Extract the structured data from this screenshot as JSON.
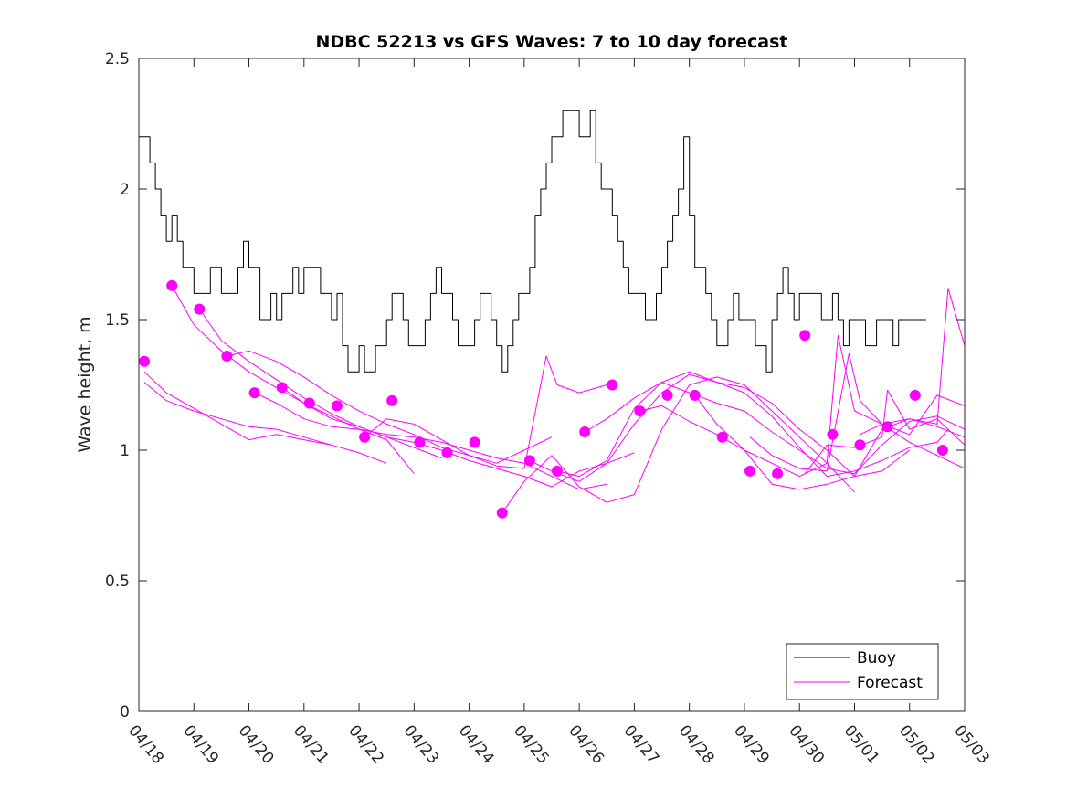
{
  "chart_data": {
    "type": "line",
    "title": "NDBC 52213 vs GFS Waves: 7 to 10 day forecast",
    "xlabel": "",
    "ylabel": "Wave height, m",
    "x_tick_labels": [
      "04/18",
      "04/19",
      "04/20",
      "04/21",
      "04/22",
      "04/23",
      "04/24",
      "04/25",
      "04/26",
      "04/27",
      "04/28",
      "04/29",
      "04/30",
      "05/01",
      "05/02",
      "05/03"
    ],
    "y_ticks": [
      0,
      0.5,
      1,
      1.5,
      2,
      2.5
    ],
    "y_tick_labels": [
      "0",
      "0.5",
      "1",
      "1.5",
      "2",
      "2.5"
    ],
    "xlim": [
      0,
      15
    ],
    "ylim": [
      0,
      2.5
    ],
    "grid": false,
    "legend": {
      "position": "bottom-right",
      "entries": [
        "Buoy",
        "Forecast"
      ]
    },
    "colors": {
      "buoy": "#000000",
      "forecast": "#ff00ff",
      "axes": "#262626"
    },
    "series": [
      {
        "name": "Buoy",
        "style": "line",
        "x": [
          0.0,
          0.1,
          0.2,
          0.3,
          0.4,
          0.5,
          0.6,
          0.7,
          0.8,
          0.9,
          1.0,
          1.1,
          1.2,
          1.3,
          1.4,
          1.5,
          1.6,
          1.7,
          1.8,
          1.9,
          2.0,
          2.1,
          2.2,
          2.3,
          2.4,
          2.5,
          2.6,
          2.7,
          2.8,
          2.9,
          3.0,
          3.1,
          3.2,
          3.3,
          3.4,
          3.5,
          3.6,
          3.7,
          3.8,
          3.9,
          4.0,
          4.1,
          4.2,
          4.3,
          4.4,
          4.5,
          4.6,
          4.7,
          4.8,
          4.9,
          5.0,
          5.1,
          5.2,
          5.3,
          5.4,
          5.5,
          5.6,
          5.7,
          5.8,
          5.9,
          6.0,
          6.1,
          6.2,
          6.3,
          6.4,
          6.5,
          6.6,
          6.7,
          6.8,
          6.9,
          7.0,
          7.1,
          7.2,
          7.3,
          7.4,
          7.5,
          7.6,
          7.7,
          7.8,
          7.9,
          8.0,
          8.1,
          8.2,
          8.3,
          8.4,
          8.5,
          8.6,
          8.7,
          8.8,
          8.9,
          9.0,
          9.1,
          9.2,
          9.3,
          9.4,
          9.5,
          9.6,
          9.7,
          9.8,
          9.9,
          10.0,
          10.1,
          10.2,
          10.3,
          10.4,
          10.5,
          10.6,
          10.7,
          10.8,
          10.9,
          11.0,
          11.1,
          11.2,
          11.3,
          11.4,
          11.5,
          11.6,
          11.7,
          11.8,
          11.9,
          12.0,
          12.1,
          12.2,
          12.3,
          12.4,
          12.5,
          12.6,
          12.7,
          12.8,
          12.9,
          13.0,
          13.1,
          13.2,
          13.3,
          13.4,
          13.5,
          13.6,
          13.7,
          13.8,
          13.9,
          14.0,
          14.1,
          14.2,
          14.3
        ],
        "values": [
          2.2,
          2.2,
          2.1,
          2.0,
          1.9,
          1.8,
          1.9,
          1.8,
          1.7,
          1.7,
          1.6,
          1.6,
          1.6,
          1.7,
          1.7,
          1.6,
          1.6,
          1.6,
          1.7,
          1.8,
          1.7,
          1.7,
          1.5,
          1.5,
          1.6,
          1.5,
          1.6,
          1.6,
          1.7,
          1.6,
          1.7,
          1.7,
          1.7,
          1.6,
          1.6,
          1.5,
          1.6,
          1.4,
          1.3,
          1.3,
          1.4,
          1.3,
          1.3,
          1.4,
          1.4,
          1.5,
          1.6,
          1.6,
          1.5,
          1.4,
          1.4,
          1.4,
          1.5,
          1.6,
          1.7,
          1.6,
          1.6,
          1.5,
          1.4,
          1.4,
          1.4,
          1.5,
          1.6,
          1.6,
          1.5,
          1.4,
          1.3,
          1.4,
          1.5,
          1.6,
          1.6,
          1.7,
          1.9,
          2.0,
          2.1,
          2.2,
          2.2,
          2.3,
          2.3,
          2.3,
          2.2,
          2.2,
          2.3,
          2.1,
          2.0,
          2.0,
          1.9,
          1.8,
          1.7,
          1.6,
          1.6,
          1.6,
          1.5,
          1.5,
          1.6,
          1.7,
          1.8,
          1.9,
          2.0,
          2.2,
          1.9,
          1.7,
          1.7,
          1.6,
          1.5,
          1.4,
          1.4,
          1.5,
          1.6,
          1.5,
          1.5,
          1.5,
          1.4,
          1.4,
          1.3,
          1.5,
          1.6,
          1.7,
          1.6,
          1.5,
          1.6,
          1.6,
          1.6,
          1.6,
          1.5,
          1.5,
          1.6,
          1.5,
          1.4,
          1.5,
          1.5,
          1.5,
          1.4,
          1.4,
          1.5,
          1.5,
          1.5,
          1.4,
          1.5,
          1.5,
          1.5,
          1.5,
          1.5,
          1.5
        ]
      },
      {
        "name": "Forecast",
        "style": "markers",
        "x": [
          0.1,
          0.6,
          1.1,
          1.6,
          2.1,
          2.6,
          3.1,
          3.6,
          4.1,
          4.6,
          5.1,
          5.6,
          6.1,
          6.6,
          7.1,
          7.6,
          8.1,
          8.6,
          9.1,
          9.6,
          10.1,
          10.6,
          11.1,
          11.6,
          12.1,
          12.6,
          13.1,
          13.6,
          14.1,
          14.6
        ],
        "values": [
          1.34,
          1.63,
          1.54,
          1.36,
          1.22,
          1.24,
          1.18,
          1.17,
          1.05,
          1.19,
          1.03,
          0.99,
          1.03,
          0.76,
          0.96,
          0.92,
          1.07,
          1.25,
          1.15,
          1.21,
          1.21,
          1.05,
          0.92,
          0.91,
          1.44,
          1.06,
          1.02,
          1.09,
          1.21,
          1.0
        ]
      },
      {
        "name": "",
        "style": "line",
        "x": [
          0.1,
          0.5,
          1.0,
          1.5,
          2.0,
          2.5,
          3.0,
          3.5
        ],
        "values": [
          1.3,
          1.22,
          1.16,
          1.1,
          1.04,
          1.06,
          1.04,
          1.02
        ]
      },
      {
        "name": "",
        "style": "line",
        "x": [
          0.1,
          0.5,
          1.0,
          1.5,
          2.0,
          2.5,
          3.0,
          3.5,
          4.0,
          4.5
        ],
        "values": [
          1.26,
          1.19,
          1.15,
          1.12,
          1.09,
          1.08,
          1.05,
          1.02,
          0.99,
          0.95
        ]
      },
      {
        "name": "",
        "style": "line",
        "x": [
          0.6,
          1.0,
          1.5,
          2.0,
          2.5,
          3.0,
          3.5,
          4.0,
          4.5,
          5.0
        ],
        "values": [
          1.63,
          1.48,
          1.38,
          1.3,
          1.24,
          1.18,
          1.13,
          1.08,
          1.04,
          0.91
        ]
      },
      {
        "name": "",
        "style": "line",
        "x": [
          1.1,
          1.5,
          2.0,
          2.5,
          3.0,
          3.5,
          4.0,
          4.5,
          5.0,
          5.5
        ],
        "values": [
          1.54,
          1.42,
          1.34,
          1.27,
          1.2,
          1.14,
          1.09,
          1.05,
          1.01,
          0.97
        ]
      },
      {
        "name": "",
        "style": "line",
        "x": [
          1.6,
          2.0,
          2.5,
          3.0,
          3.5,
          4.0,
          4.5,
          5.0,
          5.5,
          6.0,
          6.5,
          7.0,
          7.5
        ],
        "values": [
          1.36,
          1.38,
          1.34,
          1.28,
          1.21,
          1.15,
          1.1,
          1.06,
          1.01,
          0.98,
          0.95,
          1.0,
          1.05
        ]
      },
      {
        "name": "",
        "style": "line",
        "x": [
          2.1,
          2.5,
          3.0,
          3.5,
          4.0,
          4.5,
          5.0,
          5.5,
          6.0,
          6.5,
          7.0,
          7.5,
          8.0,
          8.5
        ],
        "values": [
          1.22,
          1.18,
          1.12,
          1.09,
          1.08,
          1.06,
          1.05,
          1.03,
          1.0,
          0.97,
          0.95,
          0.9,
          0.85,
          0.87
        ]
      },
      {
        "name": "",
        "style": "line",
        "x": [
          2.6,
          3.0,
          3.5,
          4.0,
          4.5,
          5.0,
          5.5,
          6.0,
          6.5,
          7.0,
          7.5,
          8.0,
          8.5,
          9.0
        ],
        "values": [
          1.24,
          1.18,
          1.12,
          1.09,
          1.05,
          1.03,
          1.0,
          0.96,
          0.93,
          0.9,
          0.86,
          0.92,
          0.95,
          0.99
        ]
      },
      {
        "name": "",
        "style": "line",
        "x": [
          4.1,
          4.5,
          5.0,
          5.5,
          6.0,
          6.5,
          7.0,
          7.4,
          7.6,
          8.0,
          8.5
        ],
        "values": [
          1.05,
          1.12,
          1.1,
          1.04,
          0.98,
          0.94,
          0.93,
          1.36,
          1.25,
          1.22,
          1.25
        ]
      },
      {
        "name": "",
        "style": "line",
        "x": [
          6.6,
          7.0,
          7.5,
          8.0,
          8.5,
          9.0,
          9.5,
          10.0,
          10.5,
          11.0,
          11.5,
          12.0,
          12.5,
          13.0
        ],
        "values": [
          0.76,
          0.88,
          0.98,
          0.86,
          0.8,
          0.83,
          1.08,
          1.25,
          1.28,
          1.25,
          1.15,
          1.05,
          0.95,
          0.84
        ]
      },
      {
        "name": "",
        "style": "line",
        "x": [
          7.1,
          7.5,
          8.0,
          8.5,
          9.0,
          9.5,
          10.0,
          10.5,
          11.0,
          11.5,
          12.0,
          12.5,
          13.0,
          13.5,
          14.0
        ],
        "values": [
          0.96,
          0.92,
          0.88,
          0.95,
          1.1,
          1.22,
          1.29,
          1.26,
          1.24,
          1.18,
          1.08,
          1.0,
          0.9,
          0.92,
          1.0
        ]
      },
      {
        "name": "",
        "style": "line",
        "x": [
          7.6,
          8.0,
          8.5,
          9.0,
          9.5,
          10.0,
          10.5,
          11.0,
          11.5,
          12.0,
          12.5,
          13.0,
          13.5,
          14.0,
          14.5,
          14.7
        ],
        "values": [
          0.92,
          0.9,
          0.96,
          1.16,
          1.26,
          1.3,
          1.26,
          1.22,
          1.13,
          1.01,
          0.9,
          0.92,
          0.96,
          1.01,
          1.03,
          1.08
        ]
      },
      {
        "name": "",
        "style": "line",
        "x": [
          8.1,
          8.5,
          9.0,
          9.5,
          10.0,
          10.5,
          11.0,
          11.5,
          12.0,
          12.5,
          13.0,
          13.5,
          14.0,
          14.5,
          15.0
        ],
        "values": [
          1.07,
          1.12,
          1.2,
          1.26,
          1.22,
          1.18,
          1.15,
          1.07,
          1.0,
          0.93,
          0.91,
          1.02,
          1.11,
          1.13,
          1.08
        ]
      },
      {
        "name": "",
        "style": "line",
        "x": [
          9.1,
          9.5,
          10.0,
          10.5,
          11.0,
          11.5,
          12.0,
          12.5,
          12.7,
          13.0,
          13.5,
          14.0,
          14.5,
          14.7,
          15.0
        ],
        "values": [
          1.15,
          1.17,
          1.11,
          1.06,
          1.0,
          0.95,
          0.9,
          0.95,
          1.44,
          1.15,
          1.1,
          1.12,
          1.1,
          1.62,
          1.4
        ]
      },
      {
        "name": "",
        "style": "line",
        "x": [
          10.1,
          10.5,
          11.0,
          11.5,
          12.0,
          12.5,
          13.0,
          13.5,
          14.0,
          14.5,
          15.0
        ],
        "values": [
          1.21,
          1.1,
          1.0,
          0.87,
          0.85,
          0.87,
          0.9,
          1.08,
          1.12,
          1.09,
          1.05
        ]
      },
      {
        "name": "",
        "style": "line",
        "x": [
          11.1,
          11.5,
          12.0,
          12.5,
          12.9,
          13.1,
          13.5,
          14.0,
          14.5,
          15.0
        ],
        "values": [
          1.05,
          0.98,
          0.93,
          0.92,
          1.37,
          1.19,
          1.1,
          1.03,
          0.98,
          0.93
        ]
      },
      {
        "name": "",
        "style": "line",
        "x": [
          12.1,
          12.5,
          13.0,
          13.5,
          13.6,
          14.0,
          14.5,
          15.0
        ],
        "values": [
          0.91,
          1.02,
          1.01,
          1.05,
          1.23,
          1.08,
          1.12,
          1.02
        ]
      },
      {
        "name": "",
        "style": "line",
        "x": [
          13.1,
          13.5,
          14.0,
          14.5,
          15.0
        ],
        "values": [
          1.06,
          1.1,
          1.06,
          1.21,
          1.17
        ]
      }
    ]
  }
}
